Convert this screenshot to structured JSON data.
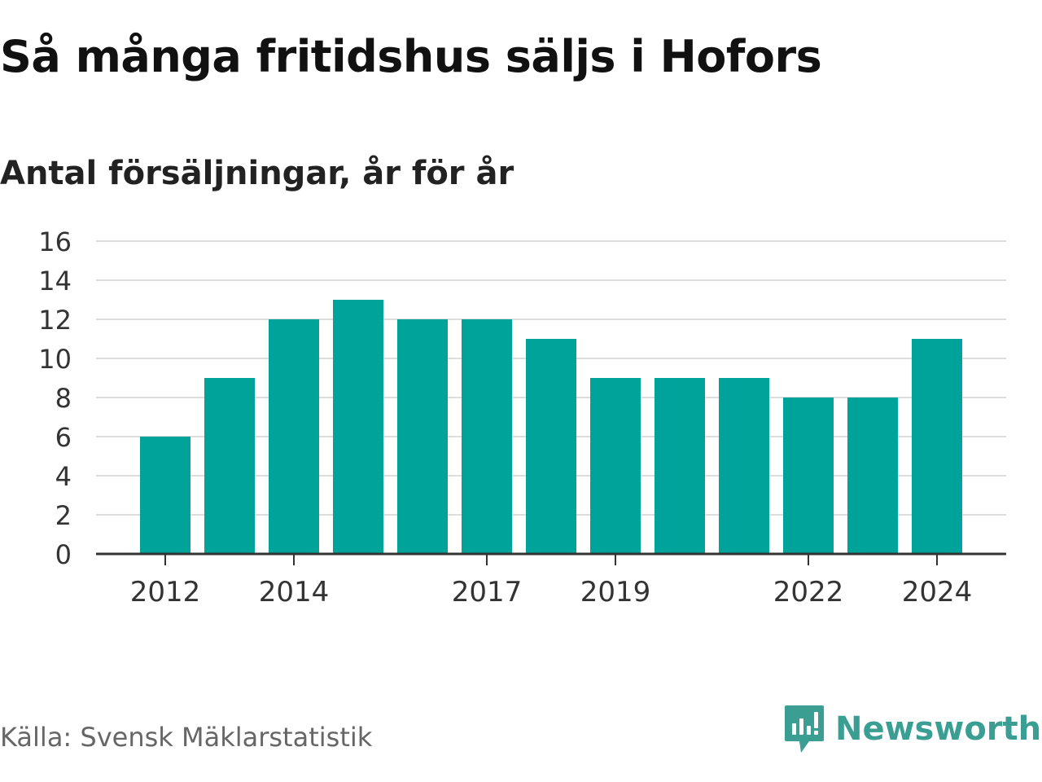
{
  "header": {
    "title": "Så många fritidshus säljs i Hofors",
    "subtitle": "Antal försäljningar, år för år"
  },
  "chart_data": {
    "type": "bar",
    "categories": [
      "2012",
      "2013",
      "2014",
      "2015",
      "2016",
      "2017",
      "2018",
      "2019",
      "2020",
      "2021",
      "2022",
      "2023",
      "2024"
    ],
    "values": [
      6,
      9,
      12,
      13,
      12,
      12,
      11,
      9,
      9,
      9,
      8,
      8,
      11
    ],
    "x_tick_labels": [
      "2012",
      "2014",
      "2017",
      "2019",
      "2022",
      "2024"
    ],
    "y_ticks": [
      0,
      2,
      4,
      6,
      8,
      10,
      12,
      14,
      16
    ],
    "ylim": [
      0,
      16
    ],
    "grid": true,
    "legend": "none",
    "bar_color": "#00a39a",
    "gridline_color": "#dddddd",
    "axis_color": "#333333"
  },
  "footer": {
    "source": "Källa: Svensk Mäklarstatistik",
    "brand_name": "Newsworthy",
    "brand_color": "#3a9e93",
    "brand_icon": "newsworthy-logo-icon"
  }
}
